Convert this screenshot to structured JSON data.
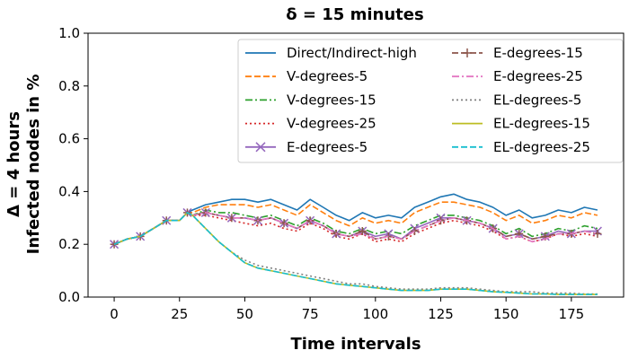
{
  "chart_data": {
    "type": "line",
    "title": "δ = 15 minutes",
    "xlabel": "Time intervals",
    "ylabel_line1": "Δ = 4 hours",
    "ylabel_line2": "Infected nodes in %",
    "xlim": [
      -10,
      195
    ],
    "ylim": [
      0,
      1.0
    ],
    "xticks": [
      0,
      25,
      50,
      75,
      100,
      125,
      150,
      175
    ],
    "yticks": [
      0.0,
      0.2,
      0.4,
      0.6,
      0.8,
      1.0
    ],
    "ytick_labels": [
      "0.0",
      "0.2",
      "0.4",
      "0.6",
      "0.8",
      "1.0"
    ],
    "grid": false,
    "legend_placement": "top-right",
    "x": [
      0,
      5,
      10,
      15,
      20,
      25,
      28,
      30,
      35,
      40,
      45,
      50,
      55,
      60,
      65,
      70,
      75,
      80,
      85,
      90,
      95,
      100,
      105,
      110,
      115,
      120,
      125,
      130,
      135,
      140,
      145,
      150,
      155,
      160,
      165,
      170,
      175,
      180,
      185
    ],
    "series": [
      {
        "name": "Direct/Indirect-high",
        "color": "#1f77b4",
        "dash": "solid",
        "marker": "none",
        "values": [
          0.2,
          0.22,
          0.23,
          0.26,
          0.29,
          0.29,
          0.32,
          0.33,
          0.35,
          0.36,
          0.37,
          0.37,
          0.36,
          0.37,
          0.35,
          0.33,
          0.37,
          0.34,
          0.31,
          0.29,
          0.32,
          0.3,
          0.31,
          0.3,
          0.34,
          0.36,
          0.38,
          0.39,
          0.37,
          0.36,
          0.34,
          0.31,
          0.33,
          0.3,
          0.31,
          0.33,
          0.32,
          0.34,
          0.33
        ]
      },
      {
        "name": "V-degrees-5",
        "color": "#ff7f0e",
        "dash": "dashed",
        "marker": "none",
        "values": [
          0.2,
          0.22,
          0.23,
          0.26,
          0.29,
          0.29,
          0.32,
          0.32,
          0.34,
          0.35,
          0.35,
          0.35,
          0.34,
          0.35,
          0.33,
          0.31,
          0.35,
          0.32,
          0.29,
          0.27,
          0.3,
          0.28,
          0.29,
          0.28,
          0.32,
          0.34,
          0.36,
          0.36,
          0.35,
          0.34,
          0.32,
          0.29,
          0.31,
          0.28,
          0.29,
          0.31,
          0.3,
          0.32,
          0.31
        ]
      },
      {
        "name": "V-degrees-15",
        "color": "#2ca02c",
        "dash": "dashdot",
        "marker": "none",
        "values": [
          0.2,
          0.22,
          0.23,
          0.26,
          0.29,
          0.29,
          0.32,
          0.31,
          0.33,
          0.32,
          0.32,
          0.31,
          0.3,
          0.31,
          0.29,
          0.27,
          0.3,
          0.28,
          0.25,
          0.24,
          0.26,
          0.24,
          0.25,
          0.24,
          0.27,
          0.29,
          0.31,
          0.31,
          0.3,
          0.29,
          0.27,
          0.24,
          0.26,
          0.23,
          0.24,
          0.26,
          0.25,
          0.27,
          0.26
        ]
      },
      {
        "name": "V-degrees-25",
        "color": "#d62728",
        "dash": "dotted",
        "marker": "none",
        "values": [
          0.2,
          0.22,
          0.23,
          0.26,
          0.29,
          0.29,
          0.32,
          0.31,
          0.31,
          0.3,
          0.29,
          0.28,
          0.27,
          0.28,
          0.26,
          0.25,
          0.28,
          0.26,
          0.23,
          0.22,
          0.24,
          0.21,
          0.22,
          0.21,
          0.24,
          0.26,
          0.28,
          0.29,
          0.28,
          0.27,
          0.25,
          0.22,
          0.23,
          0.21,
          0.22,
          0.24,
          0.23,
          0.24,
          0.23
        ]
      },
      {
        "name": "E-degrees-5",
        "color": "#9467bd",
        "dash": "solid",
        "marker": "x",
        "values": [
          0.2,
          0.22,
          0.23,
          0.26,
          0.29,
          0.29,
          0.32,
          0.31,
          0.32,
          0.31,
          0.3,
          0.3,
          0.29,
          0.3,
          0.28,
          0.26,
          0.29,
          0.27,
          0.24,
          0.23,
          0.25,
          0.23,
          0.24,
          0.22,
          0.26,
          0.28,
          0.3,
          0.3,
          0.29,
          0.28,
          0.26,
          0.23,
          0.24,
          0.22,
          0.23,
          0.25,
          0.24,
          0.25,
          0.25
        ]
      },
      {
        "name": "E-degrees-15",
        "color": "#8c564b",
        "dash": "dashed",
        "marker": "plus",
        "values": [
          0.2,
          0.22,
          0.23,
          0.26,
          0.29,
          0.29,
          0.32,
          0.31,
          0.32,
          0.31,
          0.3,
          0.3,
          0.29,
          0.3,
          0.28,
          0.26,
          0.29,
          0.27,
          0.24,
          0.23,
          0.25,
          0.22,
          0.23,
          0.22,
          0.25,
          0.27,
          0.29,
          0.3,
          0.29,
          0.28,
          0.26,
          0.23,
          0.24,
          0.22,
          0.23,
          0.24,
          0.24,
          0.25,
          0.24
        ]
      },
      {
        "name": "E-degrees-25",
        "color": "#e377c2",
        "dash": "dashdot",
        "marker": "none",
        "values": [
          0.2,
          0.22,
          0.23,
          0.26,
          0.29,
          0.29,
          0.32,
          0.31,
          0.32,
          0.31,
          0.3,
          0.3,
          0.29,
          0.3,
          0.28,
          0.26,
          0.29,
          0.27,
          0.24,
          0.23,
          0.24,
          0.22,
          0.23,
          0.22,
          0.25,
          0.27,
          0.29,
          0.3,
          0.29,
          0.28,
          0.26,
          0.22,
          0.23,
          0.21,
          0.22,
          0.24,
          0.24,
          0.25,
          0.24
        ]
      },
      {
        "name": "EL-degrees-5",
        "color": "#7f7f7f",
        "dash": "dotted",
        "marker": "none",
        "values": [
          0.2,
          0.22,
          0.23,
          0.26,
          0.29,
          0.29,
          0.32,
          0.31,
          0.26,
          0.21,
          0.17,
          0.14,
          0.12,
          0.11,
          0.1,
          0.09,
          0.08,
          0.07,
          0.06,
          0.05,
          0.05,
          0.04,
          0.035,
          0.03,
          0.03,
          0.03,
          0.035,
          0.035,
          0.035,
          0.03,
          0.025,
          0.02,
          0.02,
          0.02,
          0.015,
          0.015,
          0.015,
          0.012,
          0.012
        ]
      },
      {
        "name": "EL-degrees-15",
        "color": "#bcbd22",
        "dash": "solid",
        "marker": "none",
        "values": [
          0.2,
          0.22,
          0.23,
          0.26,
          0.29,
          0.29,
          0.32,
          0.31,
          0.26,
          0.21,
          0.17,
          0.13,
          0.11,
          0.1,
          0.09,
          0.08,
          0.07,
          0.06,
          0.05,
          0.045,
          0.04,
          0.035,
          0.03,
          0.025,
          0.025,
          0.025,
          0.03,
          0.03,
          0.03,
          0.025,
          0.02,
          0.018,
          0.015,
          0.012,
          0.012,
          0.01,
          0.01,
          0.01,
          0.01
        ]
      },
      {
        "name": "EL-degrees-25",
        "color": "#17becf",
        "dash": "dashed",
        "marker": "none",
        "values": [
          0.2,
          0.22,
          0.23,
          0.26,
          0.29,
          0.29,
          0.32,
          0.31,
          0.26,
          0.21,
          0.17,
          0.13,
          0.11,
          0.1,
          0.09,
          0.08,
          0.07,
          0.06,
          0.05,
          0.045,
          0.04,
          0.035,
          0.03,
          0.025,
          0.025,
          0.025,
          0.03,
          0.03,
          0.03,
          0.025,
          0.02,
          0.018,
          0.015,
          0.012,
          0.012,
          0.01,
          0.01,
          0.01,
          0.01
        ]
      }
    ]
  }
}
